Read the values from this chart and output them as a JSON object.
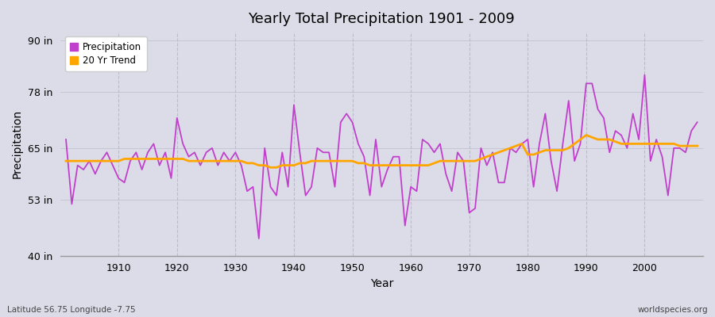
{
  "title": "Yearly Total Precipitation 1901 - 2009",
  "xlabel": "Year",
  "ylabel": "Precipitation",
  "subtitle_left": "Latitude 56.75 Longitude -7.75",
  "subtitle_right": "worldspecies.org",
  "ylim": [
    40,
    92
  ],
  "xlim": [
    1900,
    2010
  ],
  "yticks": [
    40,
    53,
    65,
    78,
    90
  ],
  "ytick_labels": [
    "40 in",
    "53 in",
    "65 in",
    "78 in",
    "90 in"
  ],
  "xticks": [
    1910,
    1920,
    1930,
    1940,
    1950,
    1960,
    1970,
    1980,
    1990,
    2000
  ],
  "fig_bg_color": "#dcdce8",
  "plot_bg_color": "#dcdce8",
  "precip_color": "#c040cc",
  "trend_color": "#ffa500",
  "legend_entries": [
    "Precipitation",
    "20 Yr Trend"
  ],
  "years": [
    1901,
    1902,
    1903,
    1904,
    1905,
    1906,
    1907,
    1908,
    1909,
    1910,
    1911,
    1912,
    1913,
    1914,
    1915,
    1916,
    1917,
    1918,
    1919,
    1920,
    1921,
    1922,
    1923,
    1924,
    1925,
    1926,
    1927,
    1928,
    1929,
    1930,
    1931,
    1932,
    1933,
    1934,
    1935,
    1936,
    1937,
    1938,
    1939,
    1940,
    1941,
    1942,
    1943,
    1944,
    1945,
    1946,
    1947,
    1948,
    1949,
    1950,
    1951,
    1952,
    1953,
    1954,
    1955,
    1956,
    1957,
    1958,
    1959,
    1960,
    1961,
    1962,
    1963,
    1964,
    1965,
    1966,
    1967,
    1968,
    1969,
    1970,
    1971,
    1972,
    1973,
    1974,
    1975,
    1976,
    1977,
    1978,
    1979,
    1980,
    1981,
    1982,
    1983,
    1984,
    1985,
    1986,
    1987,
    1988,
    1989,
    1990,
    1991,
    1992,
    1993,
    1994,
    1995,
    1996,
    1997,
    1998,
    1999,
    2000,
    2001,
    2002,
    2003,
    2004,
    2005,
    2006,
    2007,
    2008,
    2009
  ],
  "precip": [
    67,
    52,
    61,
    60,
    62,
    59,
    62,
    64,
    61,
    58,
    57,
    62,
    64,
    60,
    64,
    66,
    61,
    64,
    58,
    72,
    66,
    63,
    64,
    61,
    64,
    65,
    61,
    64,
    62,
    64,
    61,
    55,
    56,
    44,
    65,
    56,
    54,
    64,
    56,
    75,
    64,
    54,
    56,
    65,
    64,
    64,
    56,
    71,
    73,
    71,
    66,
    63,
    54,
    67,
    56,
    60,
    63,
    63,
    47,
    56,
    55,
    67,
    66,
    64,
    66,
    59,
    55,
    64,
    62,
    50,
    51,
    65,
    61,
    64,
    57,
    57,
    65,
    64,
    66,
    67,
    56,
    66,
    73,
    62,
    55,
    66,
    76,
    62,
    66,
    80,
    80,
    74,
    72,
    64,
    69,
    68,
    65,
    73,
    67,
    82,
    62,
    67,
    63,
    54,
    65,
    65,
    64,
    69,
    71
  ],
  "trend": [
    62.0,
    62.0,
    62.0,
    62.0,
    62.0,
    62.0,
    62.0,
    62.0,
    62.0,
    62.0,
    62.5,
    62.5,
    62.5,
    62.5,
    62.5,
    62.5,
    62.5,
    62.5,
    62.5,
    62.5,
    62.5,
    62.0,
    62.0,
    62.0,
    62.0,
    62.0,
    62.0,
    62.0,
    62.0,
    62.0,
    62.0,
    61.5,
    61.5,
    61.0,
    61.0,
    60.5,
    60.5,
    61.0,
    61.0,
    61.0,
    61.5,
    61.5,
    62.0,
    62.0,
    62.0,
    62.0,
    62.0,
    62.0,
    62.0,
    62.0,
    61.5,
    61.5,
    61.0,
    61.0,
    61.0,
    61.0,
    61.0,
    61.0,
    61.0,
    61.0,
    61.0,
    61.0,
    61.0,
    61.5,
    62.0,
    62.0,
    62.0,
    62.0,
    62.0,
    62.0,
    62.0,
    62.5,
    63.0,
    63.5,
    64.0,
    64.5,
    65.0,
    65.5,
    66.0,
    63.5,
    63.5,
    64.0,
    64.5,
    64.5,
    64.5,
    64.5,
    65.0,
    66.0,
    67.0,
    68.0,
    67.5,
    67.0,
    67.0,
    67.0,
    66.5,
    66.0,
    66.0,
    66.0,
    66.0,
    66.0,
    66.0,
    66.0,
    66.0,
    66.0,
    66.0,
    65.5,
    65.5,
    65.5,
    65.5
  ]
}
